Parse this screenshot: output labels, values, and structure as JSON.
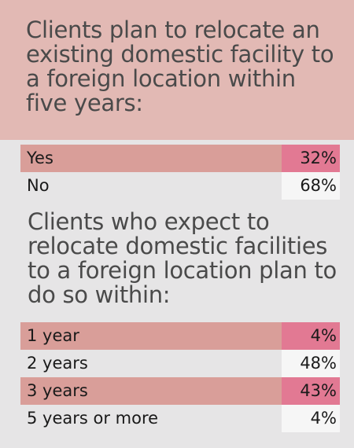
{
  "chart_data": [
    {
      "type": "table",
      "title": "Clients plan to relocate an existing domestic facility to a foreign location within five years:",
      "categories": [
        "Yes",
        "No"
      ],
      "values": [
        32,
        68
      ],
      "value_labels": [
        "32%",
        "68%"
      ],
      "highlight": [
        true,
        false
      ]
    },
    {
      "type": "table",
      "title": "Clients who expect to relocate domestic facilities to a foreign location plan to do so within:",
      "categories": [
        "1 year",
        "2 years",
        "3 years",
        "5 years or more"
      ],
      "values": [
        4,
        48,
        43,
        4
      ],
      "value_labels": [
        "4%",
        "48%",
        "43%",
        "4%"
      ],
      "highlight": [
        true,
        false,
        true,
        false
      ]
    }
  ],
  "colors": {
    "header_bg": "#e2b9b4",
    "page_bg": "#e6e5e6",
    "highlight_label_bg": "#d99e99",
    "highlight_value_bg": "#e27993",
    "value_cell_bg": "#f6f6f6",
    "title_text": "#4a4a4a"
  }
}
